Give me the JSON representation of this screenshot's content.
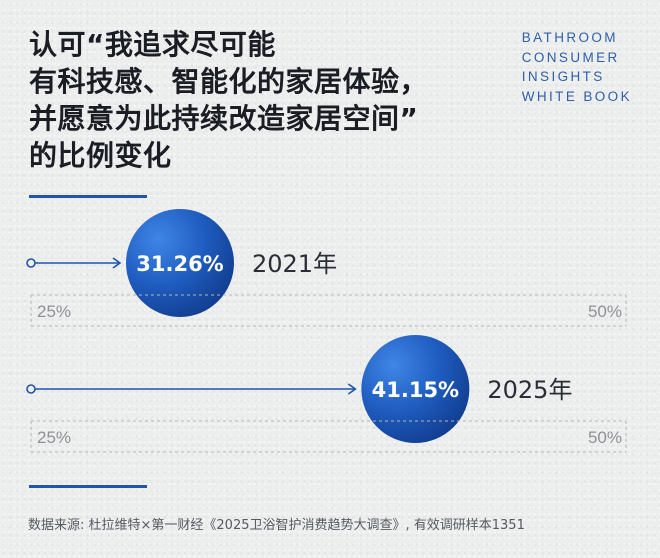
{
  "title": {
    "line1": "认可“我追求尽可能",
    "line2": "有科技感、智能化的家居体验，",
    "line3": "并愿意为此持续改造家居空间”",
    "line4": "的比例变化"
  },
  "brand": {
    "line1": "BATHROOM",
    "line2": "CONSUMER",
    "line3": "INSIGHTS",
    "line4": "WHITE BOOK"
  },
  "source": "数据来源: 杜拉维特×第一财经《2025卫浴智护消费趋势大调查》, 有效调研样本1351",
  "colors": {
    "accent": "#1f55aa",
    "bubble_light": "#3f86e6",
    "bubble_dark": "#123f92"
  },
  "chart_data": {
    "type": "scatter",
    "categories": [
      "2021年",
      "2025年"
    ],
    "values": [
      31.26,
      41.15
    ],
    "value_labels": [
      "31.26%",
      "41.15%"
    ],
    "xlim": [
      25,
      50
    ],
    "tick_labels": [
      "25%",
      "50%"
    ],
    "legend": "none",
    "grid": false
  }
}
